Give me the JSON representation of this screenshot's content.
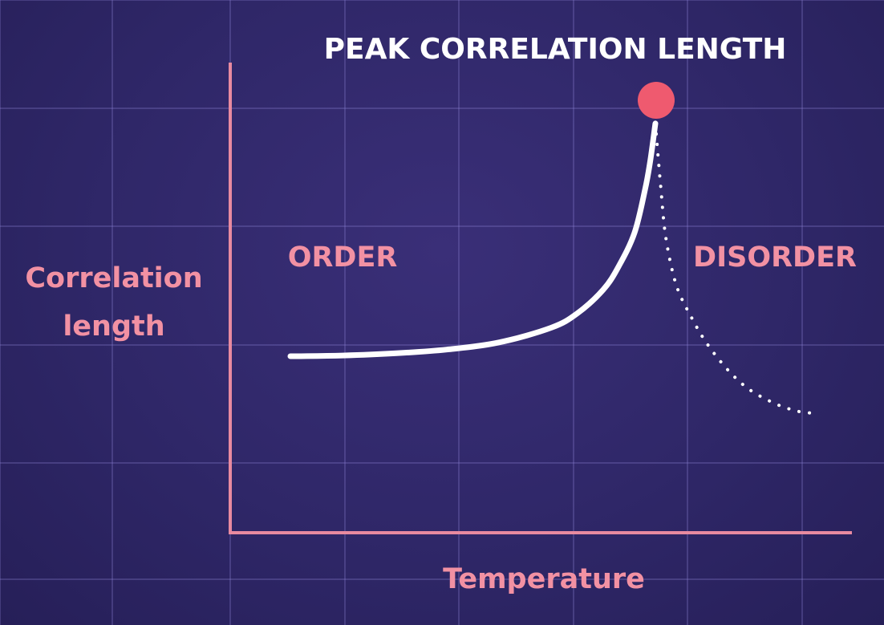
{
  "chart_data": {
    "type": "line",
    "title": "PEAK CORRELATION LENGTH",
    "xlabel": "Temperature",
    "ylabel": [
      "Correlation",
      "length"
    ],
    "regions": {
      "left": "ORDER",
      "right": "DISORDER"
    },
    "grid": true,
    "series": [
      {
        "style": "solid",
        "x": [
          0.0,
          0.1,
          0.2,
          0.3,
          0.4,
          0.5,
          0.55,
          0.6,
          0.63,
          0.66,
          0.68,
          0.69,
          0.7
        ],
        "y": [
          0.0,
          0.003,
          0.012,
          0.028,
          0.058,
          0.12,
          0.18,
          0.28,
          0.38,
          0.52,
          0.7,
          0.82,
          0.98
        ]
      },
      {
        "style": "dotted",
        "x": [
          0.7,
          0.71,
          0.72,
          0.74,
          0.77,
          0.8,
          0.84,
          0.88,
          0.93,
          0.97,
          1.0
        ],
        "y": [
          0.98,
          0.72,
          0.5,
          0.3,
          0.16,
          0.05,
          -0.06,
          -0.14,
          -0.2,
          -0.23,
          -0.24
        ]
      }
    ],
    "peak": {
      "x": 0.7,
      "y": 1.0
    },
    "colors": {
      "axis": "#e88aa0",
      "label": "#f291a3",
      "curve": "#ffffff",
      "peak": "#ef5a6f",
      "title": "#ffffff",
      "grid": "#8f86d6"
    }
  }
}
